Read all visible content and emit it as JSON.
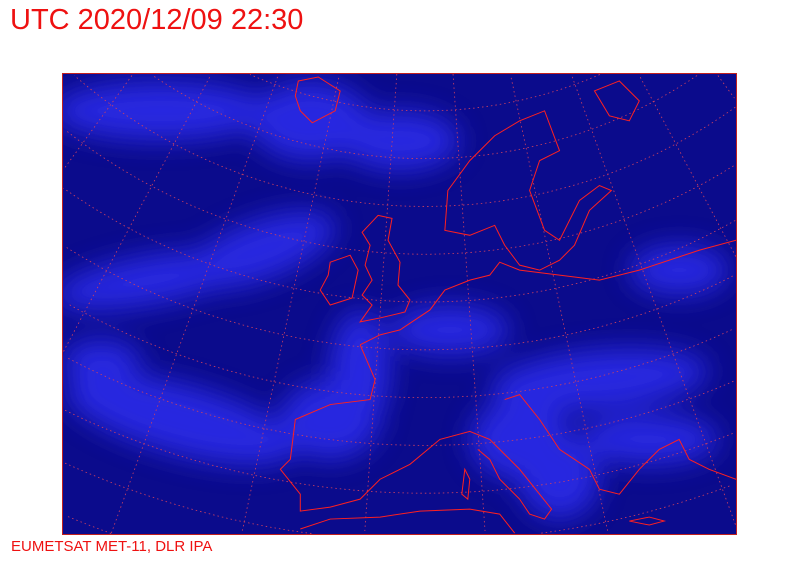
{
  "header": {
    "title": "UTC 2020/12/09 22:30"
  },
  "footer": {
    "credit": "EUMETSAT MET-11, DLR IPA"
  },
  "map": {
    "type": "satellite-imagery",
    "region": "Europe",
    "colors": {
      "background": "#08088a",
      "clouds": "#3a3aff",
      "coastline": "#ff2020",
      "graticule": "#d04060",
      "text": "#ee1111"
    }
  }
}
